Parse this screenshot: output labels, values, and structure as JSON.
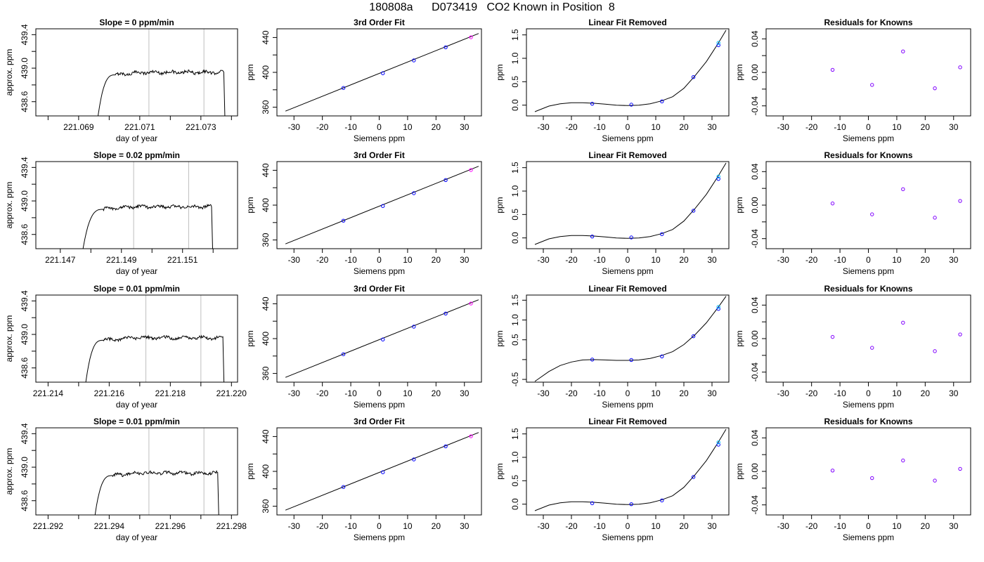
{
  "figure": {
    "title": "180808a      D073419   CO2 Known in Position  8",
    "colors": {
      "line": "#000000",
      "refline": "#bebebe",
      "point_blue": "#0000ff",
      "point_magenta": "#ff00ff",
      "point_cyan": "#00bfff",
      "point_purple": "#8000ff"
    }
  },
  "chart_data": [
    {
      "row": 0,
      "col": 0,
      "type": "line",
      "title": "Slope =  0  ppm/min",
      "xlabel": "day of year",
      "ylabel": "approx. ppm",
      "xlim": [
        221.0676,
        221.0742
      ],
      "ylim": [
        438.43,
        439.47
      ],
      "xticks": [
        221.068,
        221.069,
        221.07,
        221.071,
        221.072,
        221.073,
        221.074
      ],
      "xticklabels": [
        "",
        "221.069",
        "",
        "221.071",
        "",
        "221.073",
        ""
      ],
      "yticks": [
        438.6,
        438.8,
        439.0,
        439.2,
        439.4
      ],
      "yticklabels": [
        "438.6",
        "",
        "439.0",
        "",
        "439.4"
      ],
      "trace": {
        "start": 221.0696,
        "rise_end": 221.0702,
        "end": 221.07375,
        "level": 438.95
      },
      "vlines": [
        221.0713,
        221.0731
      ]
    },
    {
      "row": 0,
      "col": 1,
      "type": "scatter",
      "title": "3rd Order Fit",
      "xlabel": "Siemens ppm",
      "ylabel": "ppm",
      "xlim": [
        -36,
        36
      ],
      "ylim": [
        350,
        450
      ],
      "xticks": [
        -30,
        -20,
        -10,
        0,
        10,
        20,
        30
      ],
      "xticklabels": [
        "-30",
        "-20",
        "-10",
        "0",
        "10",
        "20",
        "30"
      ],
      "yticks": [
        360,
        380,
        400,
        420,
        440
      ],
      "yticklabels": [
        "360",
        "",
        "400",
        "",
        "440"
      ],
      "points_x": [
        -12.6,
        1.3,
        12.2,
        23.4,
        32.3
      ],
      "points_y": [
        382.1,
        399.0,
        413.7,
        428.8,
        440.3
      ],
      "line": {
        "x": [
          -33,
          35
        ],
        "y": [
          355.5,
          444.6
        ]
      }
    },
    {
      "row": 0,
      "col": 2,
      "type": "scatter",
      "title": "Linear Fit Removed",
      "xlabel": "Siemens ppm",
      "ylabel": "ppm",
      "xlim": [
        -36,
        36
      ],
      "ylim": [
        -0.23,
        1.63
      ],
      "xticks": [
        -30,
        -20,
        -10,
        0,
        10,
        20,
        30
      ],
      "xticklabels": [
        "-30",
        "-20",
        "-10",
        "0",
        "10",
        "20",
        "30"
      ],
      "yticks": [
        0.0,
        0.5,
        1.0,
        1.5
      ],
      "yticklabels": [
        "0.0",
        "0.5",
        "1.0",
        "1.5"
      ],
      "points_x": [
        -12.6,
        1.3,
        12.2,
        23.4,
        32.3,
        32.3
      ],
      "points_y": [
        0.03,
        0.01,
        0.08,
        0.6,
        1.28,
        1.33
      ],
      "curve": [
        [
          -33,
          -0.14
        ],
        [
          -28,
          -0.02
        ],
        [
          -24,
          0.03
        ],
        [
          -20,
          0.05
        ],
        [
          -16,
          0.05
        ],
        [
          -12,
          0.04
        ],
        [
          -8,
          0.02
        ],
        [
          -4,
          0.0
        ],
        [
          0,
          -0.01
        ],
        [
          4,
          0.0
        ],
        [
          8,
          0.03
        ],
        [
          12,
          0.09
        ],
        [
          16,
          0.18
        ],
        [
          20,
          0.36
        ],
        [
          24,
          0.63
        ],
        [
          28,
          0.93
        ],
        [
          32,
          1.3
        ],
        [
          35,
          1.6
        ]
      ]
    },
    {
      "row": 0,
      "col": 3,
      "type": "scatter",
      "title": "Residuals for Knowns",
      "xlabel": "Siemens ppm",
      "ylabel": "ppm",
      "xlim": [
        -36,
        36
      ],
      "ylim": [
        -0.052,
        0.052
      ],
      "xticks": [
        -30,
        -20,
        -10,
        0,
        10,
        20,
        30
      ],
      "xticklabels": [
        "-30",
        "-20",
        "-10",
        "0",
        "10",
        "20",
        "30"
      ],
      "yticks": [
        -0.04,
        -0.02,
        0.0,
        0.02,
        0.04
      ],
      "yticklabels": [
        "-0.04",
        "",
        "0.00",
        "",
        "0.04"
      ],
      "points_x": [
        -12.6,
        1.3,
        12.2,
        23.4,
        32.3
      ],
      "points_y": [
        0.003,
        -0.015,
        0.025,
        -0.019,
        0.006
      ]
    },
    {
      "row": 1,
      "col": 0,
      "type": "line",
      "title": "Slope =  0.02  ppm/min",
      "xlabel": "day of year",
      "ylabel": "approx. ppm",
      "xlim": [
        221.1462,
        221.1528
      ],
      "ylim": [
        438.43,
        439.47
      ],
      "xticks": [
        221.147,
        221.148,
        221.149,
        221.15,
        221.151,
        221.152
      ],
      "xticklabels": [
        "221.147",
        "",
        "221.149",
        "",
        "221.151",
        ""
      ],
      "yticks": [
        438.6,
        438.8,
        439.0,
        439.2,
        439.4
      ],
      "yticklabels": [
        "438.6",
        "",
        "439.0",
        "",
        "439.4"
      ],
      "trace": {
        "start": 221.1477,
        "rise_end": 221.1484,
        "end": 221.15195,
        "level": 438.93
      },
      "vlines": [
        221.1494,
        221.1512
      ]
    },
    {
      "row": 1,
      "col": 1,
      "type": "scatter",
      "title": "3rd Order Fit",
      "xlabel": "Siemens ppm",
      "ylabel": "ppm",
      "xlim": [
        -36,
        36
      ],
      "ylim": [
        350,
        450
      ],
      "xticks": [
        -30,
        -20,
        -10,
        0,
        10,
        20,
        30
      ],
      "xticklabels": [
        "-30",
        "-20",
        "-10",
        "0",
        "10",
        "20",
        "30"
      ],
      "yticks": [
        360,
        380,
        400,
        420,
        440
      ],
      "yticklabels": [
        "360",
        "",
        "400",
        "",
        "440"
      ],
      "points_x": [
        -12.6,
        1.3,
        12.2,
        23.4,
        32.3
      ],
      "points_y": [
        382.1,
        399.0,
        413.7,
        428.8,
        440.3
      ],
      "line": {
        "x": [
          -33,
          35
        ],
        "y": [
          355.5,
          444.6
        ]
      }
    },
    {
      "row": 1,
      "col": 2,
      "type": "scatter",
      "title": "Linear Fit Removed",
      "xlabel": "Siemens ppm",
      "ylabel": "ppm",
      "xlim": [
        -36,
        36
      ],
      "ylim": [
        -0.23,
        1.63
      ],
      "xticks": [
        -30,
        -20,
        -10,
        0,
        10,
        20,
        30
      ],
      "xticklabels": [
        "-30",
        "-20",
        "-10",
        "0",
        "10",
        "20",
        "30"
      ],
      "yticks": [
        0.0,
        0.5,
        1.0,
        1.5
      ],
      "yticklabels": [
        "0.0",
        "0.5",
        "1.0",
        "1.5"
      ],
      "points_x": [
        -12.6,
        1.3,
        12.2,
        23.4,
        32.3,
        32.3
      ],
      "points_y": [
        0.03,
        0.01,
        0.08,
        0.58,
        1.26,
        1.31
      ],
      "curve": [
        [
          -33,
          -0.14
        ],
        [
          -28,
          -0.02
        ],
        [
          -24,
          0.03
        ],
        [
          -20,
          0.05
        ],
        [
          -16,
          0.05
        ],
        [
          -12,
          0.04
        ],
        [
          -8,
          0.02
        ],
        [
          -4,
          0.0
        ],
        [
          0,
          -0.01
        ],
        [
          4,
          0.0
        ],
        [
          8,
          0.03
        ],
        [
          12,
          0.09
        ],
        [
          16,
          0.18
        ],
        [
          20,
          0.36
        ],
        [
          24,
          0.63
        ],
        [
          28,
          0.93
        ],
        [
          32,
          1.3
        ],
        [
          35,
          1.6
        ]
      ]
    },
    {
      "row": 1,
      "col": 3,
      "type": "scatter",
      "title": "Residuals for Knowns",
      "xlabel": "Siemens ppm",
      "ylabel": "ppm",
      "xlim": [
        -36,
        36
      ],
      "ylim": [
        -0.052,
        0.052
      ],
      "xticks": [
        -30,
        -20,
        -10,
        0,
        10,
        20,
        30
      ],
      "xticklabels": [
        "-30",
        "-20",
        "-10",
        "0",
        "10",
        "20",
        "30"
      ],
      "yticks": [
        -0.04,
        -0.02,
        0.0,
        0.02,
        0.04
      ],
      "yticklabels": [
        "-0.04",
        "",
        "0.00",
        "",
        "0.04"
      ],
      "points_x": [
        -12.6,
        1.3,
        12.2,
        23.4,
        32.3
      ],
      "points_y": [
        0.002,
        -0.011,
        0.019,
        -0.015,
        0.005
      ]
    },
    {
      "row": 2,
      "col": 0,
      "type": "line",
      "title": "Slope =  0.01  ppm/min",
      "xlabel": "day of year",
      "ylabel": "approx. ppm",
      "xlim": [
        221.2136,
        221.2202
      ],
      "ylim": [
        438.43,
        439.47
      ],
      "xticks": [
        221.214,
        221.215,
        221.216,
        221.217,
        221.218,
        221.219,
        221.22
      ],
      "xticklabels": [
        "221.214",
        "",
        "221.216",
        "",
        "221.218",
        "",
        "221.220"
      ],
      "yticks": [
        438.6,
        438.8,
        439.0,
        439.2,
        439.4
      ],
      "yticklabels": [
        "438.6",
        "",
        "439.0",
        "",
        "439.4"
      ],
      "trace": {
        "start": 221.2152,
        "rise_end": 221.2158,
        "end": 221.21972,
        "level": 438.96
      },
      "vlines": [
        221.2172,
        221.219
      ]
    },
    {
      "row": 2,
      "col": 1,
      "type": "scatter",
      "title": "3rd Order Fit",
      "xlabel": "Siemens ppm",
      "ylabel": "ppm",
      "xlim": [
        -36,
        36
      ],
      "ylim": [
        350,
        450
      ],
      "xticks": [
        -30,
        -20,
        -10,
        0,
        10,
        20,
        30
      ],
      "xticklabels": [
        "-30",
        "-20",
        "-10",
        "0",
        "10",
        "20",
        "30"
      ],
      "yticks": [
        360,
        380,
        400,
        420,
        440
      ],
      "yticklabels": [
        "360",
        "",
        "400",
        "",
        "440"
      ],
      "points_x": [
        -12.6,
        1.3,
        12.2,
        23.4,
        32.3
      ],
      "points_y": [
        382.1,
        399.0,
        413.7,
        428.8,
        440.3
      ],
      "line": {
        "x": [
          -33,
          35
        ],
        "y": [
          355.5,
          444.6
        ]
      }
    },
    {
      "row": 2,
      "col": 2,
      "type": "scatter",
      "title": "Linear Fit Removed",
      "xlabel": "Siemens ppm",
      "ylabel": "ppm",
      "xlim": [
        -36,
        36
      ],
      "ylim": [
        -0.57,
        1.63
      ],
      "xticks": [
        -30,
        -20,
        -10,
        0,
        10,
        20,
        30
      ],
      "xticklabels": [
        "-30",
        "-20",
        "-10",
        "0",
        "10",
        "20",
        "30"
      ],
      "yticks": [
        -0.5,
        0.0,
        0.5,
        1.0,
        1.5
      ],
      "yticklabels": [
        "-0.5",
        "",
        "0.5",
        "1.0",
        "1.5"
      ],
      "points_x": [
        -12.6,
        1.3,
        12.2,
        23.4,
        32.3,
        32.3
      ],
      "points_y": [
        0.0,
        -0.01,
        0.08,
        0.59,
        1.28,
        1.33
      ],
      "curve": [
        [
          -33,
          -0.55
        ],
        [
          -28,
          -0.3
        ],
        [
          -24,
          -0.15
        ],
        [
          -20,
          -0.06
        ],
        [
          -16,
          -0.01
        ],
        [
          -12,
          0.0
        ],
        [
          -8,
          -0.01
        ],
        [
          -4,
          -0.02
        ],
        [
          0,
          -0.02
        ],
        [
          4,
          -0.01
        ],
        [
          8,
          0.03
        ],
        [
          12,
          0.1
        ],
        [
          16,
          0.2
        ],
        [
          20,
          0.38
        ],
        [
          24,
          0.63
        ],
        [
          28,
          0.93
        ],
        [
          32,
          1.3
        ],
        [
          35,
          1.6
        ]
      ]
    },
    {
      "row": 2,
      "col": 3,
      "type": "scatter",
      "title": "Residuals for Knowns",
      "xlabel": "Siemens ppm",
      "ylabel": "ppm",
      "xlim": [
        -36,
        36
      ],
      "ylim": [
        -0.052,
        0.052
      ],
      "xticks": [
        -30,
        -20,
        -10,
        0,
        10,
        20,
        30
      ],
      "xticklabels": [
        "-30",
        "-20",
        "-10",
        "0",
        "10",
        "20",
        "30"
      ],
      "yticks": [
        -0.04,
        -0.02,
        0.0,
        0.02,
        0.04
      ],
      "yticklabels": [
        "-0.04",
        "",
        "0.00",
        "",
        "0.04"
      ],
      "points_x": [
        -12.6,
        1.3,
        12.2,
        23.4,
        32.3
      ],
      "points_y": [
        0.002,
        -0.011,
        0.019,
        -0.015,
        0.005
      ]
    },
    {
      "row": 3,
      "col": 0,
      "type": "line",
      "title": "Slope =  0.01  ppm/min",
      "xlabel": "day of year",
      "ylabel": "approx. ppm",
      "xlim": [
        221.2916,
        221.2982
      ],
      "ylim": [
        438.43,
        439.47
      ],
      "xticks": [
        221.292,
        221.293,
        221.294,
        221.295,
        221.296,
        221.297,
        221.298
      ],
      "xticklabels": [
        "221.292",
        "",
        "221.294",
        "",
        "221.296",
        "",
        "221.298"
      ],
      "yticks": [
        438.6,
        438.8,
        439.0,
        439.2,
        439.4
      ],
      "yticklabels": [
        "438.6",
        "",
        "439.0",
        "",
        "439.4"
      ],
      "trace": {
        "start": 221.2935,
        "rise_end": 221.2941,
        "end": 221.29755,
        "level": 438.93
      },
      "vlines": [
        221.2953,
        221.2971
      ]
    },
    {
      "row": 3,
      "col": 1,
      "type": "scatter",
      "title": "3rd Order Fit",
      "xlabel": "Siemens ppm",
      "ylabel": "ppm",
      "xlim": [
        -36,
        36
      ],
      "ylim": [
        350,
        450
      ],
      "xticks": [
        -30,
        -20,
        -10,
        0,
        10,
        20,
        30
      ],
      "xticklabels": [
        "-30",
        "-20",
        "-10",
        "0",
        "10",
        "20",
        "30"
      ],
      "yticks": [
        360,
        380,
        400,
        420,
        440
      ],
      "yticklabels": [
        "360",
        "",
        "400",
        "",
        "440"
      ],
      "points_x": [
        -12.6,
        1.3,
        12.2,
        23.4,
        32.3
      ],
      "points_y": [
        382.1,
        399.0,
        413.7,
        428.8,
        440.3
      ],
      "line": {
        "x": [
          -33,
          35
        ],
        "y": [
          355.5,
          444.6
        ]
      }
    },
    {
      "row": 3,
      "col": 2,
      "type": "scatter",
      "title": "Linear Fit Removed",
      "xlabel": "Siemens ppm",
      "ylabel": "ppm",
      "xlim": [
        -36,
        36
      ],
      "ylim": [
        -0.23,
        1.63
      ],
      "xticks": [
        -30,
        -20,
        -10,
        0,
        10,
        20,
        30
      ],
      "xticklabels": [
        "-30",
        "-20",
        "-10",
        "0",
        "10",
        "20",
        "30"
      ],
      "yticks": [
        0.0,
        0.5,
        1.0,
        1.5
      ],
      "yticklabels": [
        "0.0",
        "0.5",
        "1.0",
        "1.5"
      ],
      "points_x": [
        -12.6,
        1.3,
        12.2,
        23.4,
        32.3,
        32.3
      ],
      "points_y": [
        0.02,
        0.0,
        0.08,
        0.58,
        1.27,
        1.32
      ],
      "curve": [
        [
          -33,
          -0.14
        ],
        [
          -28,
          -0.02
        ],
        [
          -24,
          0.03
        ],
        [
          -20,
          0.05
        ],
        [
          -16,
          0.05
        ],
        [
          -12,
          0.04
        ],
        [
          -8,
          0.02
        ],
        [
          -4,
          0.0
        ],
        [
          0,
          -0.01
        ],
        [
          4,
          0.0
        ],
        [
          8,
          0.03
        ],
        [
          12,
          0.09
        ],
        [
          16,
          0.18
        ],
        [
          20,
          0.36
        ],
        [
          24,
          0.63
        ],
        [
          28,
          0.93
        ],
        [
          32,
          1.3
        ],
        [
          35,
          1.6
        ]
      ]
    },
    {
      "row": 3,
      "col": 3,
      "type": "scatter",
      "title": "Residuals for Knowns",
      "xlabel": "Siemens ppm",
      "ylabel": "ppm",
      "xlim": [
        -36,
        36
      ],
      "ylim": [
        -0.052,
        0.052
      ],
      "xticks": [
        -30,
        -20,
        -10,
        0,
        10,
        20,
        30
      ],
      "xticklabels": [
        "-30",
        "-20",
        "-10",
        "0",
        "10",
        "20",
        "30"
      ],
      "yticks": [
        -0.04,
        -0.02,
        0.0,
        0.02,
        0.04
      ],
      "yticklabels": [
        "-0.04",
        "",
        "0.00",
        "",
        "0.04"
      ],
      "points_x": [
        -12.6,
        1.3,
        12.2,
        23.4,
        32.3
      ],
      "points_y": [
        0.001,
        -0.008,
        0.013,
        -0.011,
        0.003
      ]
    }
  ]
}
